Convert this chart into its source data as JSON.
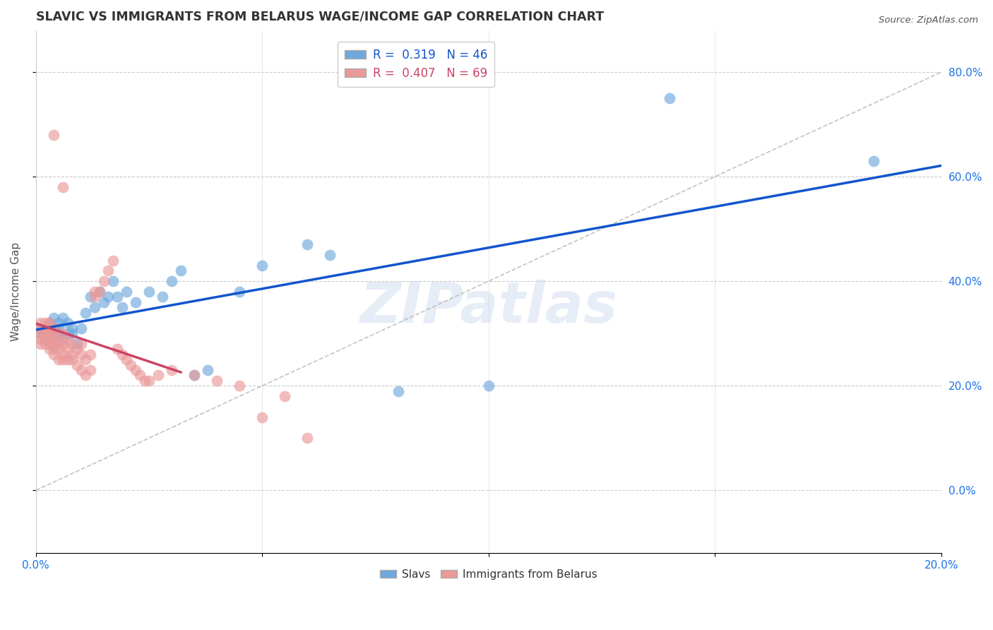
{
  "title": "SLAVIC VS IMMIGRANTS FROM BELARUS WAGE/INCOME GAP CORRELATION CHART",
  "source": "Source: ZipAtlas.com",
  "ylabel": "Wage/Income Gap",
  "xlim": [
    0.0,
    0.2
  ],
  "ylim": [
    -0.12,
    0.88
  ],
  "yticks": [
    0.0,
    0.2,
    0.4,
    0.6,
    0.8
  ],
  "blue_color": "#6fa8dc",
  "pink_color": "#ea9999",
  "blue_line_color": "#1155cc",
  "pink_line_color": "#cc4466",
  "ref_line_color": "#aaaaaa",
  "R_blue": 0.319,
  "N_blue": 46,
  "R_pink": 0.407,
  "N_pink": 69,
  "watermark": "ZIPatlas",
  "blue_scatter": [
    [
      0.001,
      0.3
    ],
    [
      0.001,
      0.31
    ],
    [
      0.002,
      0.29
    ],
    [
      0.002,
      0.31
    ],
    [
      0.003,
      0.3
    ],
    [
      0.003,
      0.32
    ],
    [
      0.003,
      0.31
    ],
    [
      0.004,
      0.3
    ],
    [
      0.004,
      0.31
    ],
    [
      0.004,
      0.33
    ],
    [
      0.005,
      0.3
    ],
    [
      0.005,
      0.32
    ],
    [
      0.005,
      0.31
    ],
    [
      0.006,
      0.29
    ],
    [
      0.006,
      0.33
    ],
    [
      0.007,
      0.3
    ],
    [
      0.007,
      0.32
    ],
    [
      0.008,
      0.31
    ],
    [
      0.008,
      0.3
    ],
    [
      0.009,
      0.28
    ],
    [
      0.01,
      0.31
    ],
    [
      0.011,
      0.34
    ],
    [
      0.012,
      0.37
    ],
    [
      0.013,
      0.35
    ],
    [
      0.014,
      0.38
    ],
    [
      0.015,
      0.36
    ],
    [
      0.016,
      0.37
    ],
    [
      0.017,
      0.4
    ],
    [
      0.018,
      0.37
    ],
    [
      0.019,
      0.35
    ],
    [
      0.02,
      0.38
    ],
    [
      0.022,
      0.36
    ],
    [
      0.025,
      0.38
    ],
    [
      0.028,
      0.37
    ],
    [
      0.03,
      0.4
    ],
    [
      0.032,
      0.42
    ],
    [
      0.035,
      0.22
    ],
    [
      0.038,
      0.23
    ],
    [
      0.045,
      0.38
    ],
    [
      0.05,
      0.43
    ],
    [
      0.06,
      0.47
    ],
    [
      0.065,
      0.45
    ],
    [
      0.08,
      0.19
    ],
    [
      0.1,
      0.2
    ],
    [
      0.14,
      0.75
    ],
    [
      0.185,
      0.63
    ]
  ],
  "pink_scatter": [
    [
      0.001,
      0.3
    ],
    [
      0.001,
      0.31
    ],
    [
      0.001,
      0.28
    ],
    [
      0.001,
      0.32
    ],
    [
      0.001,
      0.29
    ],
    [
      0.002,
      0.3
    ],
    [
      0.002,
      0.31
    ],
    [
      0.002,
      0.29
    ],
    [
      0.002,
      0.32
    ],
    [
      0.002,
      0.28
    ],
    [
      0.003,
      0.3
    ],
    [
      0.003,
      0.31
    ],
    [
      0.003,
      0.29
    ],
    [
      0.003,
      0.28
    ],
    [
      0.003,
      0.32
    ],
    [
      0.003,
      0.27
    ],
    [
      0.004,
      0.3
    ],
    [
      0.004,
      0.29
    ],
    [
      0.004,
      0.31
    ],
    [
      0.004,
      0.28
    ],
    [
      0.004,
      0.26
    ],
    [
      0.004,
      0.27
    ],
    [
      0.005,
      0.29
    ],
    [
      0.005,
      0.28
    ],
    [
      0.005,
      0.27
    ],
    [
      0.005,
      0.25
    ],
    [
      0.006,
      0.28
    ],
    [
      0.006,
      0.3
    ],
    [
      0.006,
      0.26
    ],
    [
      0.006,
      0.25
    ],
    [
      0.007,
      0.27
    ],
    [
      0.007,
      0.29
    ],
    [
      0.007,
      0.25
    ],
    [
      0.008,
      0.26
    ],
    [
      0.008,
      0.28
    ],
    [
      0.008,
      0.25
    ],
    [
      0.009,
      0.27
    ],
    [
      0.009,
      0.24
    ],
    [
      0.01,
      0.26
    ],
    [
      0.01,
      0.23
    ],
    [
      0.01,
      0.28
    ],
    [
      0.011,
      0.25
    ],
    [
      0.011,
      0.22
    ],
    [
      0.012,
      0.26
    ],
    [
      0.012,
      0.23
    ],
    [
      0.013,
      0.37
    ],
    [
      0.013,
      0.38
    ],
    [
      0.014,
      0.38
    ],
    [
      0.015,
      0.4
    ],
    [
      0.016,
      0.42
    ],
    [
      0.017,
      0.44
    ],
    [
      0.018,
      0.27
    ],
    [
      0.019,
      0.26
    ],
    [
      0.02,
      0.25
    ],
    [
      0.021,
      0.24
    ],
    [
      0.022,
      0.23
    ],
    [
      0.023,
      0.22
    ],
    [
      0.024,
      0.21
    ],
    [
      0.025,
      0.21
    ],
    [
      0.027,
      0.22
    ],
    [
      0.03,
      0.23
    ],
    [
      0.035,
      0.22
    ],
    [
      0.04,
      0.21
    ],
    [
      0.045,
      0.2
    ],
    [
      0.05,
      0.14
    ],
    [
      0.055,
      0.18
    ],
    [
      0.06,
      0.1
    ],
    [
      0.004,
      0.68
    ],
    [
      0.006,
      0.58
    ]
  ]
}
